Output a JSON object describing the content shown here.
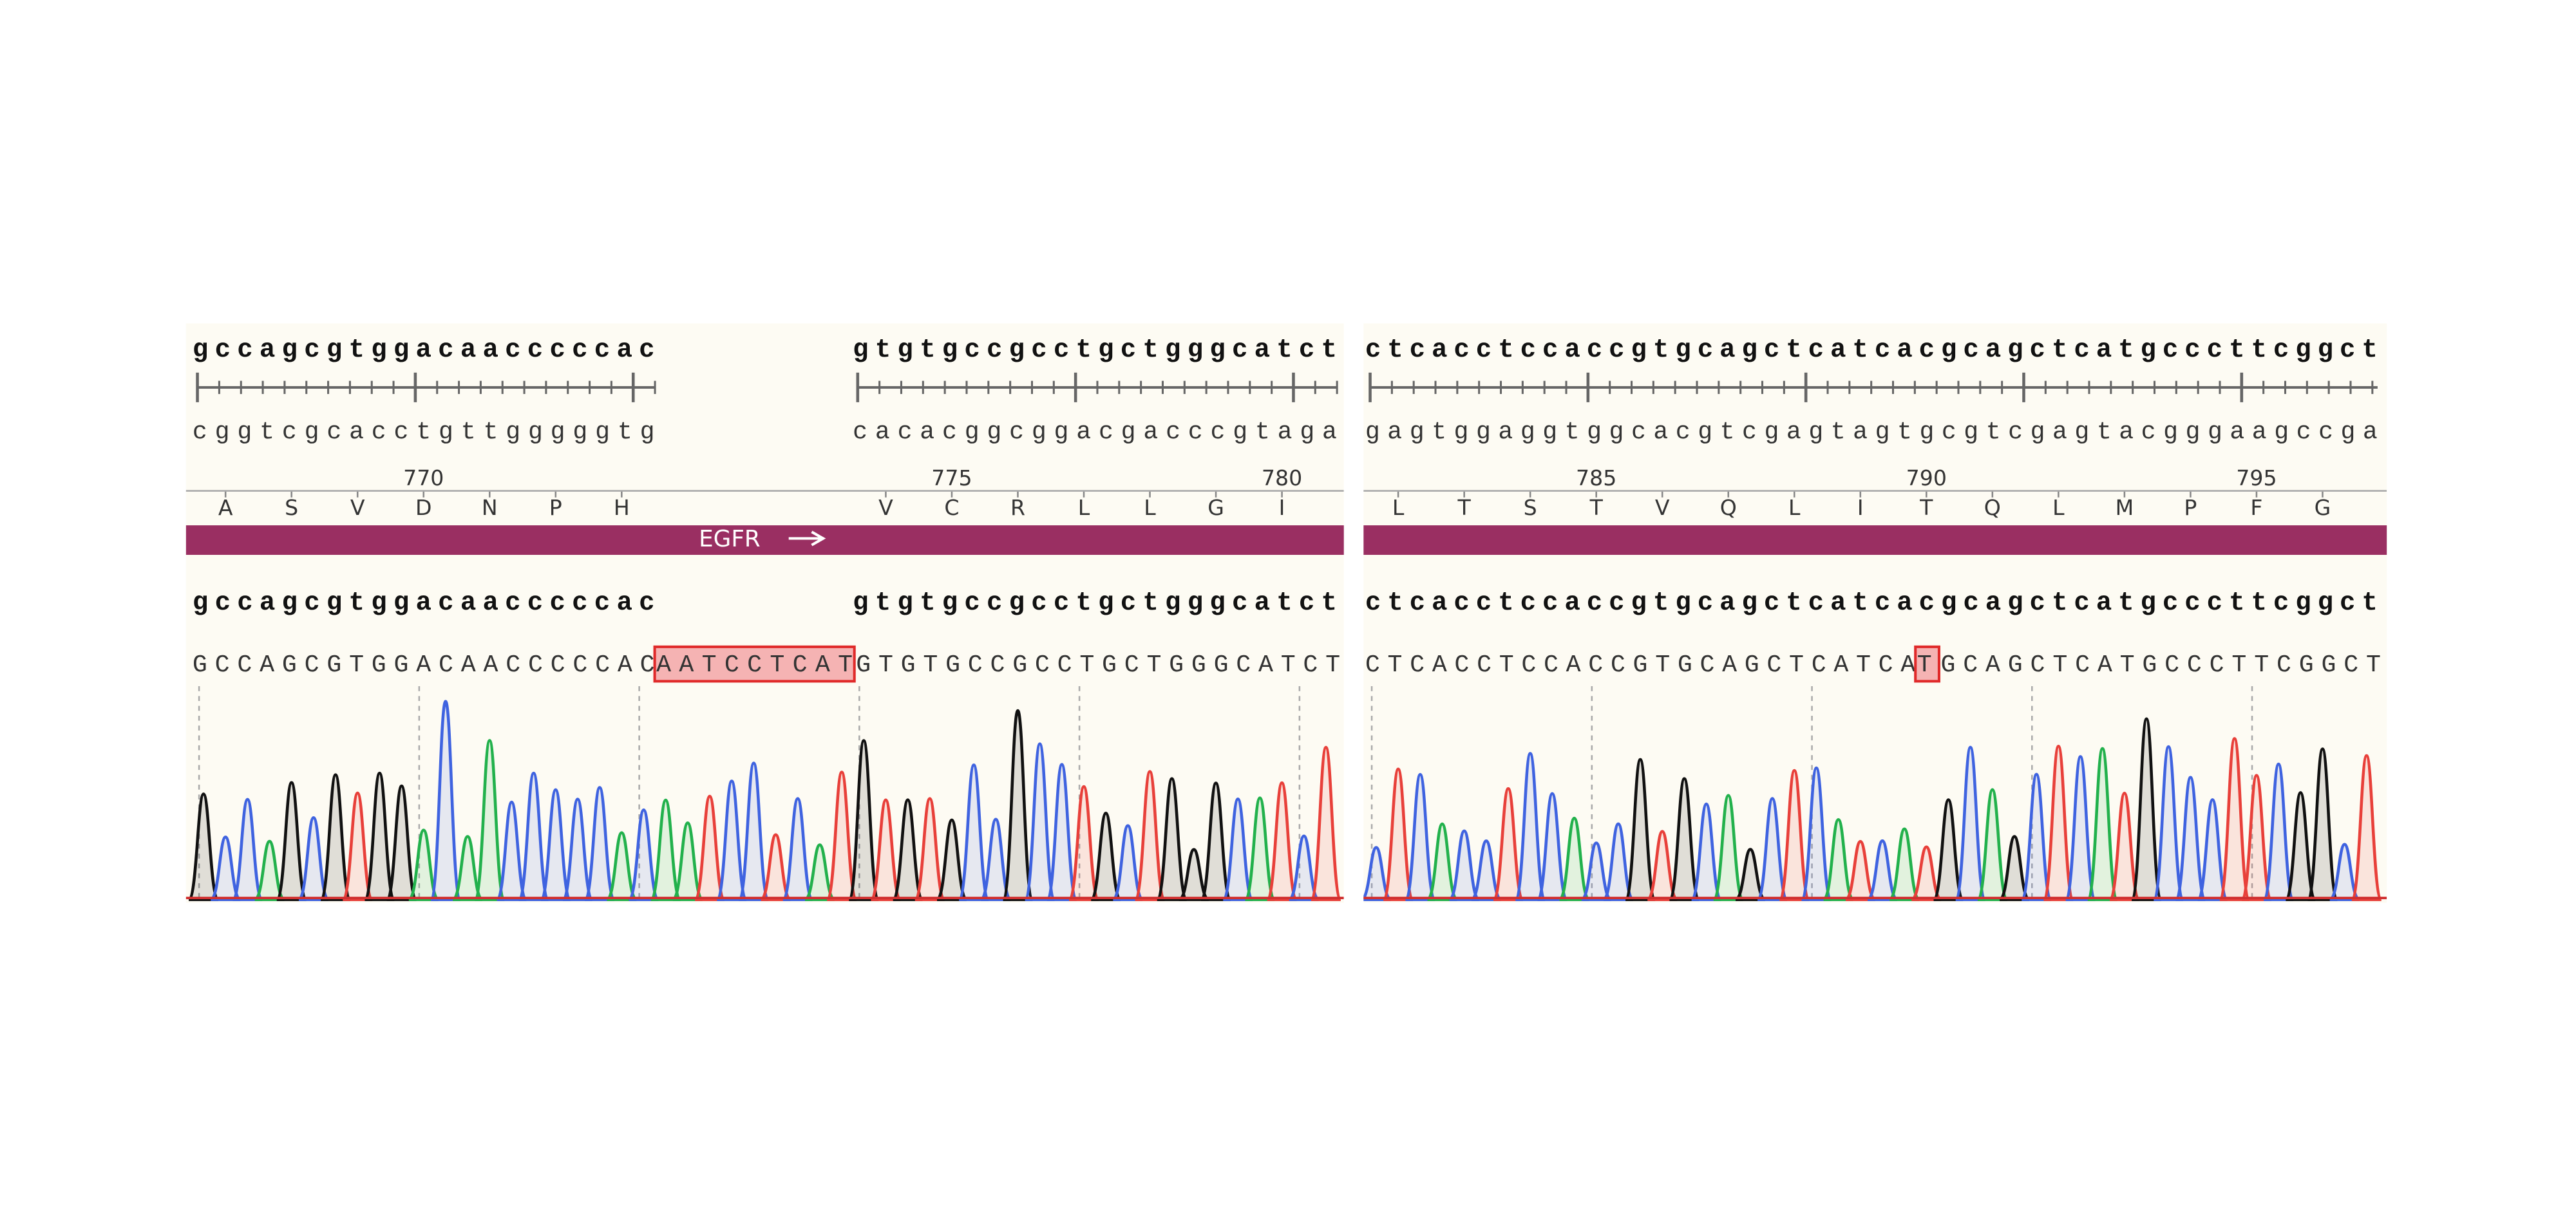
{
  "left_panel": {
    "top_strand": [
      "gccagcgtggacaacccccac",
      "gtgtgccgcctgctgggcatct"
    ],
    "bottom_strand": [
      "cggtcgcacctgttgggggtg",
      "cacacggcggacgacccgtaga"
    ],
    "positions": [
      770,
      775,
      780
    ],
    "amino_acids": [
      "A",
      "S",
      "V",
      "D",
      "N",
      "P",
      "H",
      "V",
      "C",
      "R",
      "L",
      "L",
      "G",
      "I"
    ],
    "feature": "EGFR",
    "read_reference": [
      "gccagcgtggacaacccccac",
      "gtgtgccgcctgctgggcatct"
    ],
    "read_calls": {
      "before": "GCCAGCGTGGACAACCCCCAC",
      "highlight": "AATCCTCAT",
      "after": "GTGTGCCGCCTGCTGGGCATCT"
    }
  },
  "right_panel": {
    "top_strand": [
      "ctcacctccaccgtgcagctcatcacgcagctcatgcccttcggct"
    ],
    "bottom_strand": [
      "gagtggaggtggcacgtcgagtagtgcgtcgagtacgggaagccga"
    ],
    "positions": [
      785,
      790,
      795
    ],
    "amino_acids": [
      "L",
      "T",
      "S",
      "T",
      "V",
      "Q",
      "L",
      "I",
      "T",
      "Q",
      "L",
      "M",
      "P",
      "F",
      "G"
    ],
    "read_reference": [
      "ctcacctccaccgtgcagctcatcacgcagctcatgcccttcggct"
    ],
    "read_calls": {
      "before": "CTCACCTCCACCGTGCAGCTCATCA",
      "highlight": "T",
      "after": "GCAGCTCATGCCCTTCGGCT"
    }
  }
}
